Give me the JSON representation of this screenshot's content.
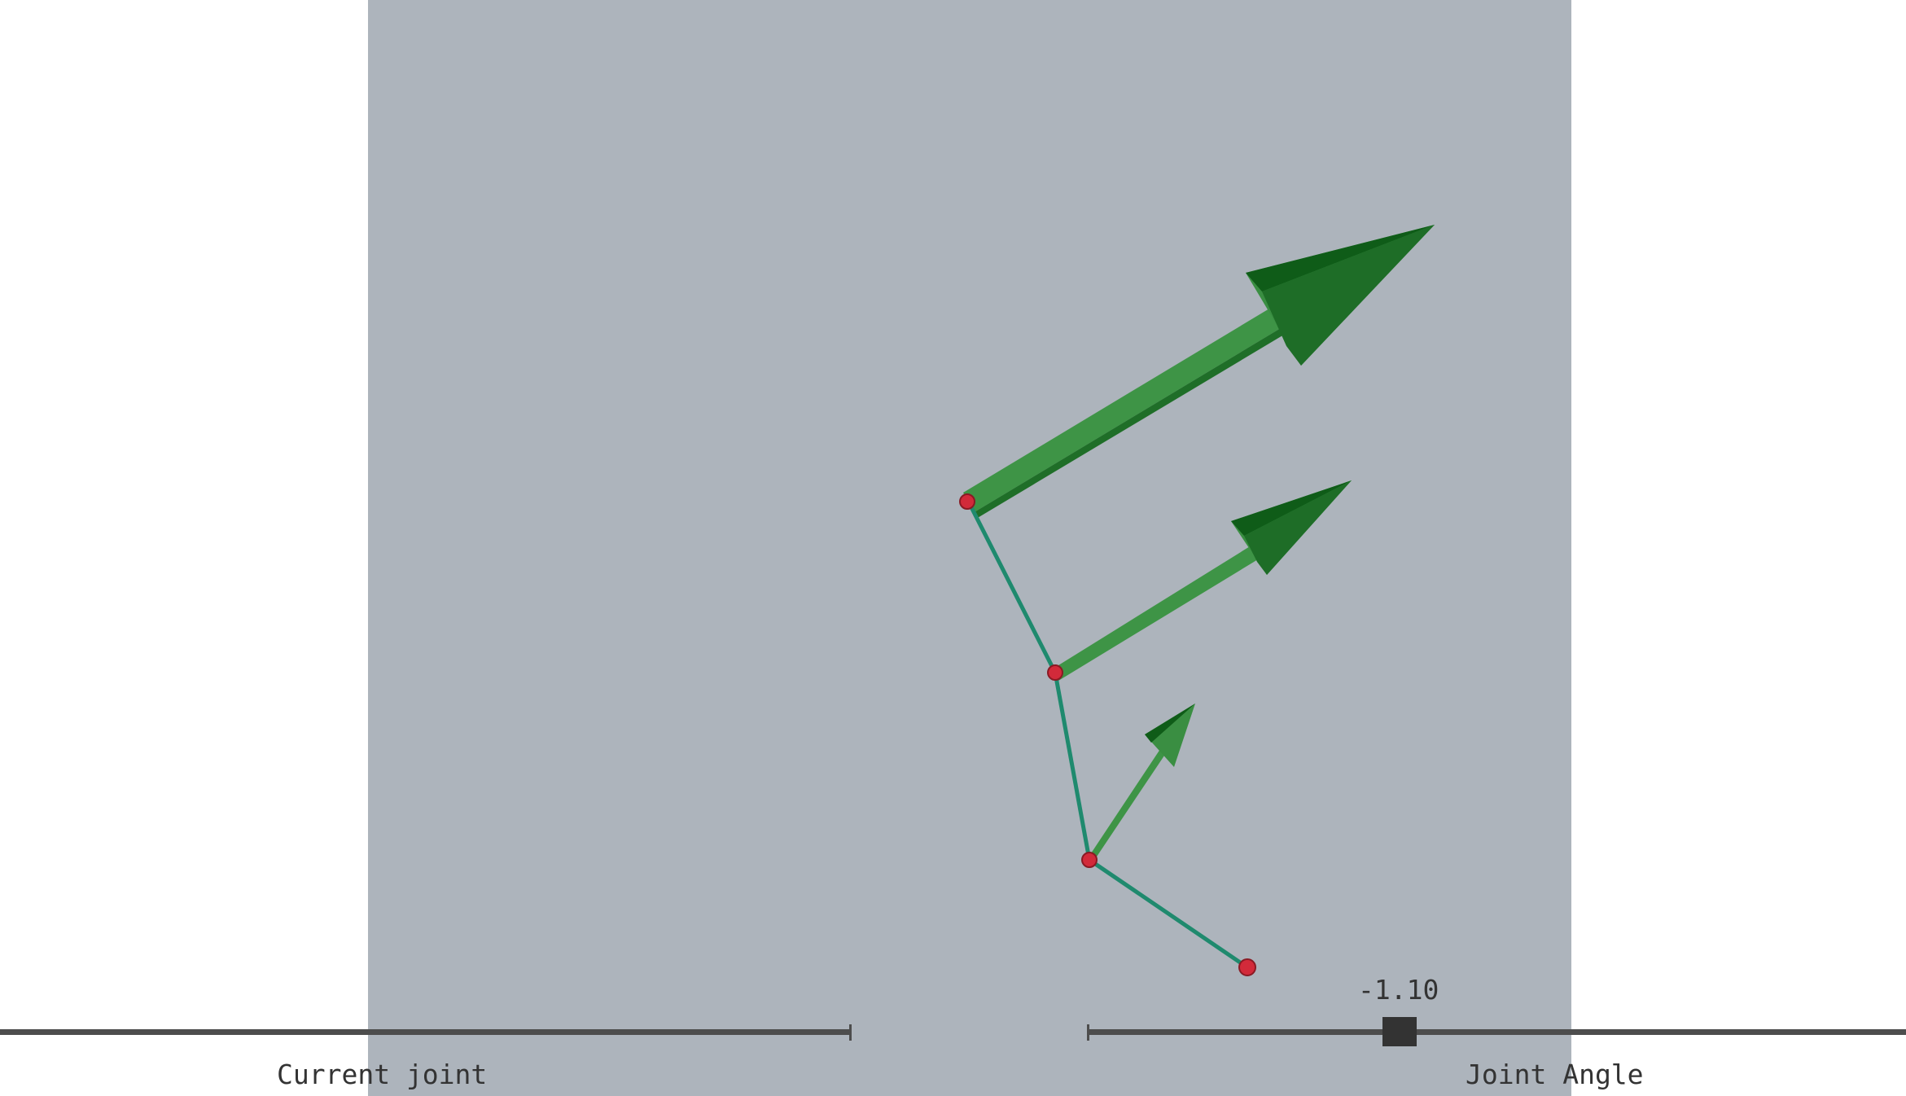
{
  "colors": {
    "background": "#ffffff",
    "viewport": "#adb4bc",
    "link": "#1f8a6e",
    "joint": "#d22a3a",
    "arrow_light": "#3e9446",
    "arrow_dark": "#0f5c18",
    "slider": "#4d4d4d",
    "thumb": "#333333"
  },
  "controls": {
    "current_joint": {
      "label": "Current joint"
    },
    "joint_angle": {
      "label": "Joint Angle",
      "value_text": "-1.10"
    }
  },
  "scene": {
    "joint_count": 4,
    "arrow_count": 3,
    "icons": [
      "joint-sphere",
      "link-segment",
      "force-arrow"
    ]
  }
}
